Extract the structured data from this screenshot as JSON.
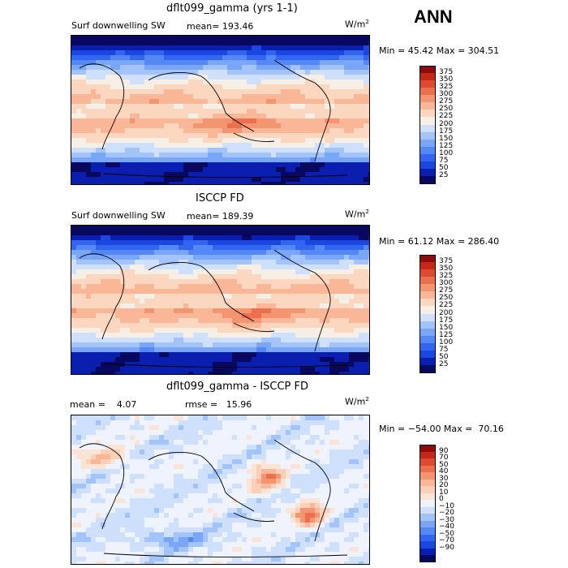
{
  "season": "ANN",
  "panels": [
    {
      "title": "dflt099_gamma (yrs 1-1)",
      "left_label": "Surf downwelling SW",
      "stat_label": "mean= 193.46",
      "stat2_label": "",
      "units": "W/m",
      "units_sup": "2",
      "minmax": "Min =  45.42 Max = 304.51",
      "colors": [
        "#08085f",
        "#0a1fb0",
        "#1a47e0",
        "#3366f0",
        "#5588f5",
        "#7aa6f8",
        "#a3c4fb",
        "#cfe0fd",
        "#f6efe6",
        "#fcd7bf",
        "#f9b797",
        "#f49572",
        "#ea7050",
        "#de4a30",
        "#c42818",
        "#8f0c0c"
      ],
      "ticks": [
        "375",
        "350",
        "325",
        "300",
        "275",
        "250",
        "225",
        "200",
        "175",
        "150",
        "125",
        "100",
        "75",
        "50",
        "25"
      ],
      "kind": "abs1"
    },
    {
      "title": "ISCCP FD",
      "left_label": "Surf downwelling SW",
      "stat_label": "mean= 189.39",
      "stat2_label": "",
      "units": "W/m",
      "units_sup": "2",
      "minmax": "Min =  61.12 Max = 286.40",
      "colors": [
        "#08085f",
        "#0a1fb0",
        "#1a47e0",
        "#3366f0",
        "#5588f5",
        "#7aa6f8",
        "#a3c4fb",
        "#cfe0fd",
        "#f6efe6",
        "#fcd7bf",
        "#f9b797",
        "#f49572",
        "#ea7050",
        "#de4a30",
        "#c42818",
        "#8f0c0c"
      ],
      "ticks": [
        "375",
        "350",
        "325",
        "300",
        "275",
        "250",
        "225",
        "200",
        "175",
        "150",
        "125",
        "100",
        "75",
        "50",
        "25"
      ],
      "kind": "abs2"
    },
    {
      "title": "dflt099_gamma - ISCCP FD",
      "left_label": "mean =    4.07",
      "stat_label": "",
      "stat2_label": "rmse =   15.96",
      "units": "W/m",
      "units_sup": "2",
      "minmax": "Min = −54.00 Max =  70.16",
      "colors": [
        "#08085f",
        "#0a1fb0",
        "#1a47e0",
        "#3366f0",
        "#5588f5",
        "#7aa6f8",
        "#a3c4fb",
        "#cfe0fd",
        "#eef3fd",
        "#fbe4d5",
        "#fcd0b6",
        "#f9b797",
        "#f49572",
        "#ea7050",
        "#de4a30",
        "#c42818",
        "#8f0c0c"
      ],
      "ticks": [
        "90",
        "70",
        "50",
        "40",
        "30",
        "20",
        "10",
        "0",
        "−10",
        "−20",
        "−30",
        "−40",
        "−50",
        "−70",
        "−90"
      ],
      "kind": "diff"
    }
  ]
}
